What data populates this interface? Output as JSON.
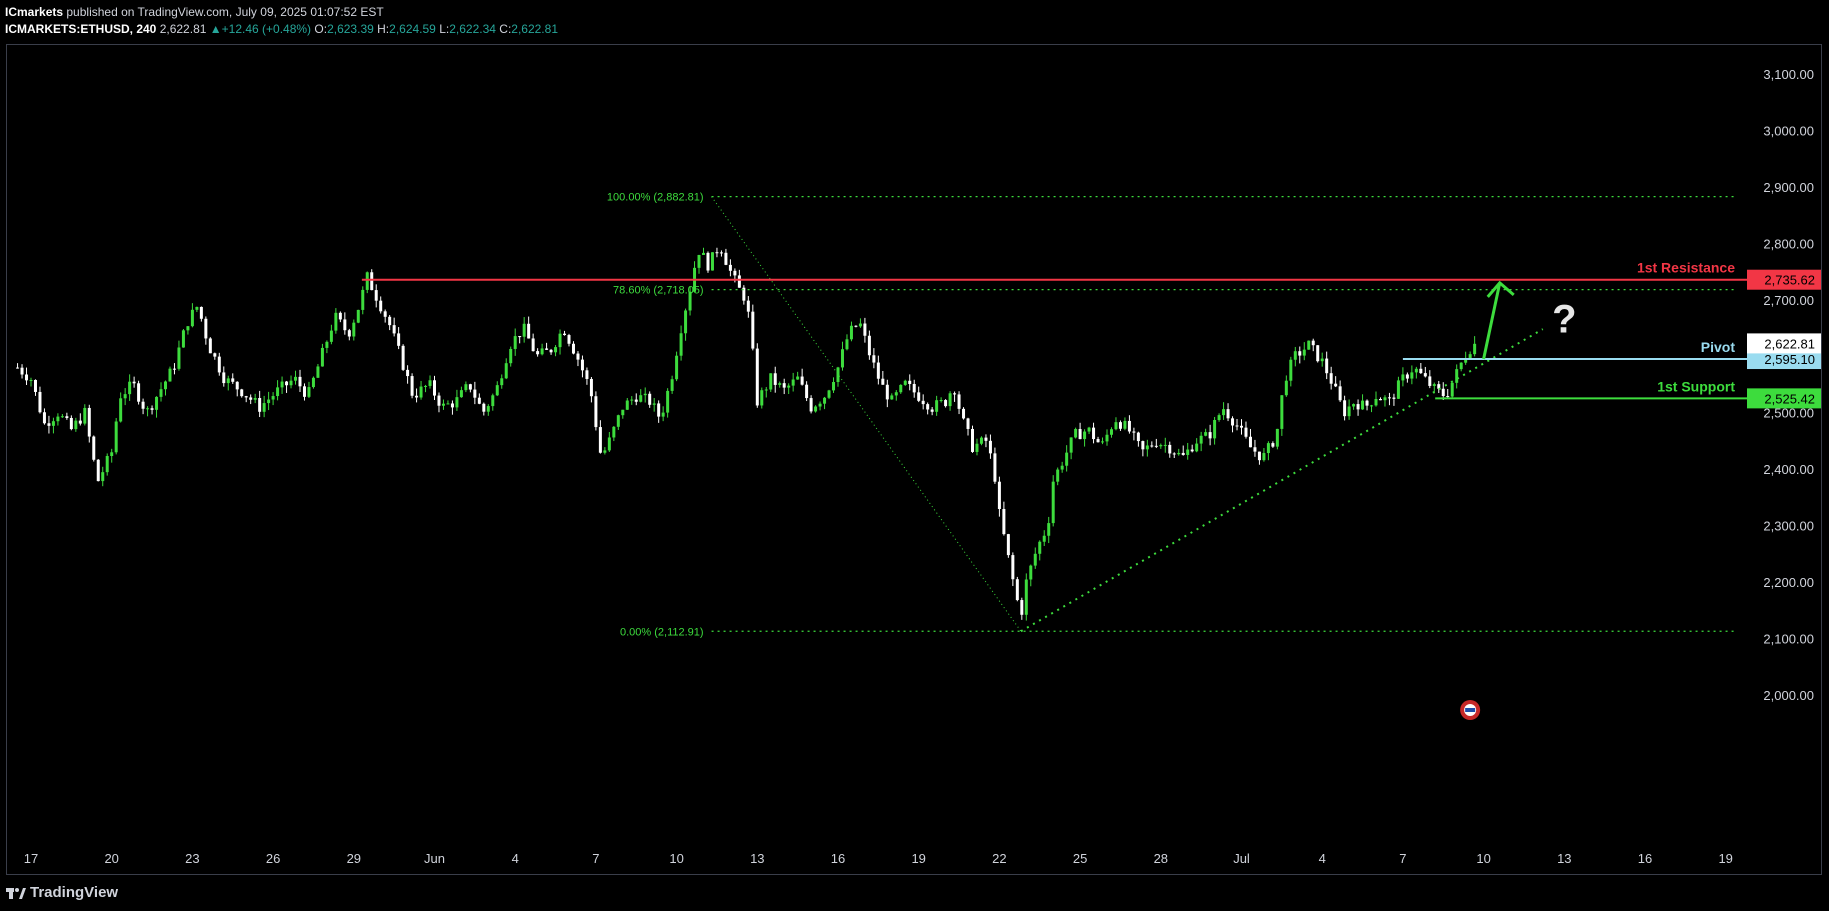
{
  "header": {
    "publisher": "ICmarkets",
    "published_text": "published on TradingView.com, July 09, 2025 01:07:52 EST",
    "symbol": "ICMARKETS:ETHUSD, 240",
    "last": "2,622.81",
    "change": "+12.46 (+0.48%)",
    "o_label": "O:",
    "o": "2,623.39",
    "h_label": "H:",
    "h": "2,624.59",
    "l_label": "L:",
    "l": "2,622.34",
    "c_label": "C:",
    "c": "2,622.81"
  },
  "footer": {
    "brand": "TradingView",
    "logo_text": "17"
  },
  "chart_data": {
    "type": "candlestick",
    "title": "",
    "ylim": [
      1940,
      3150
    ],
    "y_ticks": [
      2000,
      2100,
      2200,
      2300,
      2400,
      2500,
      2600,
      2700,
      2800,
      2900,
      3000,
      3100
    ],
    "y_tick_labels": [
      "2,000.00",
      "2,100.00",
      "2,200.00",
      "2,300.00",
      "2,400.00",
      "2,500.00",
      "2,600.00",
      "2,700.00",
      "2,800.00",
      "2,900.00",
      "3,000.00",
      "3,100.00"
    ],
    "x_ticks": [
      {
        "day": 0,
        "label": "17"
      },
      {
        "day": 3,
        "label": "20"
      },
      {
        "day": 6,
        "label": "23"
      },
      {
        "day": 9,
        "label": "26"
      },
      {
        "day": 12,
        "label": "29"
      },
      {
        "day": 15,
        "label": "Jun"
      },
      {
        "day": 18,
        "label": "4"
      },
      {
        "day": 21,
        "label": "7"
      },
      {
        "day": 24,
        "label": "10"
      },
      {
        "day": 27,
        "label": "13"
      },
      {
        "day": 30,
        "label": "16"
      },
      {
        "day": 33,
        "label": "19"
      },
      {
        "day": 36,
        "label": "22"
      },
      {
        "day": 39,
        "label": "25"
      },
      {
        "day": 42,
        "label": "28"
      },
      {
        "day": 45,
        "label": "Jul"
      },
      {
        "day": 48,
        "label": "4"
      },
      {
        "day": 51,
        "label": "7"
      },
      {
        "day": 54,
        "label": "10"
      },
      {
        "day": 57,
        "label": "13"
      },
      {
        "day": 60,
        "label": "16"
      },
      {
        "day": 63,
        "label": "19"
      }
    ],
    "price_path": [
      [
        -0.5,
        2580
      ],
      [
        0,
        2560
      ],
      [
        0.5,
        2480
      ],
      [
        1.0,
        2500
      ],
      [
        1.5,
        2470
      ],
      [
        2.0,
        2500
      ],
      [
        2.3,
        2420
      ],
      [
        2.5,
        2380
      ],
      [
        3.0,
        2430
      ],
      [
        3.3,
        2530
      ],
      [
        3.8,
        2550
      ],
      [
        4.3,
        2500
      ],
      [
        4.8,
        2540
      ],
      [
        5.3,
        2580
      ],
      [
        5.8,
        2660
      ],
      [
        6.2,
        2690
      ],
      [
        6.6,
        2620
      ],
      [
        7.2,
        2560
      ],
      [
        7.8,
        2540
      ],
      [
        8.5,
        2510
      ],
      [
        9.2,
        2540
      ],
      [
        9.8,
        2560
      ],
      [
        10.3,
        2530
      ],
      [
        10.8,
        2600
      ],
      [
        11.3,
        2670
      ],
      [
        11.8,
        2640
      ],
      [
        12.2,
        2690
      ],
      [
        12.5,
        2740
      ],
      [
        12.9,
        2700
      ],
      [
        13.3,
        2660
      ],
      [
        13.8,
        2590
      ],
      [
        14.2,
        2530
      ],
      [
        14.8,
        2550
      ],
      [
        15.3,
        2510
      ],
      [
        15.8,
        2520
      ],
      [
        16.3,
        2550
      ],
      [
        16.8,
        2500
      ],
      [
        17.3,
        2540
      ],
      [
        17.8,
        2620
      ],
      [
        18.3,
        2650
      ],
      [
        18.8,
        2600
      ],
      [
        19.3,
        2610
      ],
      [
        19.8,
        2650
      ],
      [
        20.3,
        2600
      ],
      [
        20.8,
        2540
      ],
      [
        21.2,
        2420
      ],
      [
        21.5,
        2450
      ],
      [
        22.0,
        2510
      ],
      [
        22.5,
        2530
      ],
      [
        23.0,
        2520
      ],
      [
        23.4,
        2490
      ],
      [
        23.8,
        2560
      ],
      [
        24.2,
        2660
      ],
      [
        24.5,
        2720
      ],
      [
        24.8,
        2790
      ],
      [
        25.2,
        2760
      ],
      [
        25.6,
        2800
      ],
      [
        26.0,
        2750
      ],
      [
        26.3,
        2720
      ],
      [
        26.6,
        2700
      ],
      [
        26.8,
        2620
      ],
      [
        27.0,
        2520
      ],
      [
        27.5,
        2560
      ],
      [
        28.0,
        2540
      ],
      [
        28.5,
        2560
      ],
      [
        29.0,
        2510
      ],
      [
        29.5,
        2530
      ],
      [
        30.0,
        2580
      ],
      [
        30.4,
        2640
      ],
      [
        30.8,
        2660
      ],
      [
        31.2,
        2600
      ],
      [
        31.6,
        2550
      ],
      [
        32.0,
        2520
      ],
      [
        32.5,
        2550
      ],
      [
        33.0,
        2530
      ],
      [
        33.5,
        2510
      ],
      [
        34.0,
        2520
      ],
      [
        34.3,
        2550
      ],
      [
        34.6,
        2490
      ],
      [
        35.0,
        2440
      ],
      [
        35.5,
        2450
      ],
      [
        35.8,
        2400
      ],
      [
        36.0,
        2320
      ],
      [
        36.3,
        2250
      ],
      [
        36.6,
        2180
      ],
      [
        36.8,
        2140
      ],
      [
        37.0,
        2200
      ],
      [
        37.4,
        2260
      ],
      [
        37.8,
        2300
      ],
      [
        38.0,
        2380
      ],
      [
        38.4,
        2420
      ],
      [
        38.8,
        2460
      ],
      [
        39.3,
        2470
      ],
      [
        39.8,
        2440
      ],
      [
        40.3,
        2490
      ],
      [
        40.8,
        2470
      ],
      [
        41.3,
        2430
      ],
      [
        41.8,
        2450
      ],
      [
        42.3,
        2440
      ],
      [
        42.8,
        2420
      ],
      [
        43.3,
        2450
      ],
      [
        43.8,
        2460
      ],
      [
        44.3,
        2510
      ],
      [
        44.8,
        2480
      ],
      [
        45.3,
        2440
      ],
      [
        45.8,
        2420
      ],
      [
        46.3,
        2460
      ],
      [
        46.6,
        2560
      ],
      [
        47.0,
        2600
      ],
      [
        47.5,
        2620
      ],
      [
        48.0,
        2590
      ],
      [
        48.4,
        2550
      ],
      [
        48.8,
        2500
      ],
      [
        49.2,
        2520
      ],
      [
        49.6,
        2510
      ],
      [
        50.0,
        2530
      ],
      [
        50.5,
        2520
      ],
      [
        51.0,
        2560
      ],
      [
        51.4,
        2580
      ],
      [
        51.8,
        2560
      ],
      [
        52.2,
        2540
      ],
      [
        52.6,
        2530
      ],
      [
        53.0,
        2570
      ],
      [
        53.4,
        2610
      ],
      [
        53.7,
        2623
      ]
    ],
    "fibonacci": {
      "levels": [
        {
          "ratio": "100.00%",
          "price": 2882.81,
          "label": "100.00% (2,882.81)"
        },
        {
          "ratio": "78.60%",
          "price": 2718.05,
          "label": "78.60% (2,718.05)"
        },
        {
          "ratio": "0.00%",
          "price": 2112.91,
          "label": "0.00% (2,112.91)"
        }
      ],
      "from": {
        "day": 25.3,
        "price": 2882.81
      },
      "to": {
        "day": 36.8,
        "price": 2112.91
      }
    },
    "trendline": {
      "from": {
        "day": 36.8,
        "price": 2112.91
      },
      "to": {
        "day": 56.2,
        "price": 2648
      }
    },
    "levels": [
      {
        "name": "1st Resistance",
        "price": 2735.62,
        "label": "2,735.62",
        "color": "#f23645",
        "from_day": 12.3
      },
      {
        "name": "Pivot",
        "price": 2595.1,
        "label": "2,595.10",
        "color": "#9adcf0",
        "from_day": 51.0
      },
      {
        "name": "1st Support",
        "price": 2525.42,
        "label": "2,525.42",
        "color": "#3ddc3d",
        "from_day": 52.2
      }
    ],
    "last_price": {
      "price": 2622.81,
      "label": "2,622.81"
    },
    "arrow": {
      "from": {
        "day": 54.0,
        "price": 2595
      },
      "to": {
        "day": 54.6,
        "price": 2730
      }
    },
    "question_mark": {
      "text": "?",
      "day": 57.0,
      "price": 2660
    },
    "event_icon": {
      "day": 53.5,
      "price": 2000
    },
    "colors": {
      "up": "#3ddc3d",
      "down": "#ffffff",
      "fib": "#3ddc3d",
      "axis_text": "#d1d4dc"
    }
  }
}
